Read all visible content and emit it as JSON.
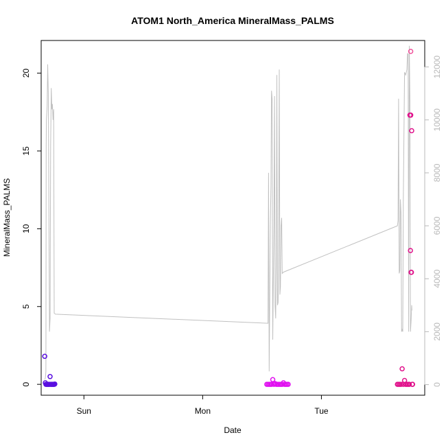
{
  "chart_data": {
    "type": "scatter",
    "title": "ATOM1 North_America MineralMass_PALMS",
    "xlabel": "Date",
    "ylabel": "MineralMass_PALMS",
    "x_axis": {
      "unit": "day",
      "lim": [
        -0.36,
        2.87
      ],
      "ticks": [
        {
          "label": "Sun",
          "value": 0
        },
        {
          "label": "Mon",
          "value": 1
        },
        {
          "label": "Tue",
          "value": 2
        }
      ]
    },
    "y_left": {
      "lim": [
        -0.7,
        22.1
      ],
      "ticks": [
        0,
        5,
        10,
        15,
        20
      ]
    },
    "y_right": {
      "lim": [
        -400,
        13000
      ],
      "ticks": [
        0,
        2000,
        4000,
        6000,
        8000,
        10000,
        12000
      ],
      "color": "#b8b8b8"
    },
    "grid": false,
    "line_series": {
      "name": "",
      "color": "#c0c0c0",
      "points": [
        [
          -0.33,
          200
        ],
        [
          -0.325,
          250
        ],
        [
          -0.32,
          500
        ],
        [
          -0.318,
          9000
        ],
        [
          -0.316,
          10000
        ],
        [
          -0.31,
          10500
        ],
        [
          -0.305,
          12100
        ],
        [
          -0.3,
          11000
        ],
        [
          -0.29,
          2000
        ],
        [
          -0.285,
          2500
        ],
        [
          -0.28,
          9000
        ],
        [
          -0.275,
          11200
        ],
        [
          -0.27,
          10400
        ],
        [
          -0.265,
          10600
        ],
        [
          -0.26,
          10000
        ],
        [
          -0.255,
          10400
        ],
        [
          -0.25,
          2700
        ],
        [
          -0.24,
          2660
        ],
        [
          1.55,
          2320
        ],
        [
          1.555,
          8000
        ],
        [
          1.56,
          500
        ],
        [
          1.57,
          6000
        ],
        [
          1.575,
          7500
        ],
        [
          1.58,
          11100
        ],
        [
          1.585,
          10800
        ],
        [
          1.59,
          1700
        ],
        [
          1.6,
          6000
        ],
        [
          1.605,
          10900
        ],
        [
          1.61,
          3000
        ],
        [
          1.615,
          2500
        ],
        [
          1.62,
          5000
        ],
        [
          1.625,
          11700
        ],
        [
          1.63,
          3000
        ],
        [
          1.635,
          3100
        ],
        [
          1.64,
          5500
        ],
        [
          1.645,
          11900
        ],
        [
          1.65,
          3400
        ],
        [
          1.655,
          3700
        ],
        [
          1.66,
          6000
        ],
        [
          1.665,
          6300
        ],
        [
          1.67,
          4200
        ],
        [
          1.68,
          4250
        ],
        [
          2.64,
          6000
        ],
        [
          2.645,
          6200
        ],
        [
          2.65,
          10800
        ],
        [
          2.655,
          4200
        ],
        [
          2.66,
          4300
        ],
        [
          2.665,
          7000
        ],
        [
          2.67,
          6500
        ],
        [
          2.675,
          2000
        ],
        [
          2.68,
          2100
        ],
        [
          2.685,
          2000
        ],
        [
          2.69,
          7000
        ],
        [
          2.7,
          11800
        ],
        [
          2.71,
          11700
        ],
        [
          2.72,
          11900
        ],
        [
          2.725,
          12500
        ],
        [
          2.73,
          12500
        ],
        [
          2.735,
          2000
        ],
        [
          2.74,
          12800
        ],
        [
          2.745,
          10700
        ],
        [
          2.75,
          2000
        ],
        [
          2.755,
          2400
        ],
        [
          2.76,
          3000
        ],
        [
          2.762,
          2800
        ]
      ]
    },
    "point_series": [
      {
        "name": "",
        "color": "#5a10e0",
        "points": [
          [
            -0.33,
            1.8
          ],
          [
            -0.325,
            0.1
          ],
          [
            -0.32,
            0
          ],
          [
            -0.315,
            0
          ],
          [
            -0.31,
            0
          ],
          [
            -0.305,
            0
          ],
          [
            -0.3,
            0
          ],
          [
            -0.295,
            0
          ],
          [
            -0.29,
            0
          ],
          [
            -0.285,
            0.5
          ],
          [
            -0.28,
            0
          ],
          [
            -0.275,
            0
          ],
          [
            -0.27,
            0
          ],
          [
            -0.265,
            0
          ],
          [
            -0.26,
            0
          ],
          [
            -0.255,
            0
          ],
          [
            -0.25,
            0
          ],
          [
            -0.245,
            0.02
          ]
        ]
      },
      {
        "name": "",
        "color": "#e010f0",
        "points": [
          [
            1.54,
            0
          ],
          [
            1.55,
            0
          ],
          [
            1.56,
            0
          ],
          [
            1.57,
            0
          ],
          [
            1.58,
            0
          ],
          [
            1.59,
            0.3
          ],
          [
            1.6,
            0
          ],
          [
            1.61,
            0.05
          ],
          [
            1.62,
            0
          ],
          [
            1.63,
            0
          ],
          [
            1.64,
            0
          ],
          [
            1.65,
            0
          ],
          [
            1.66,
            0
          ],
          [
            1.67,
            0
          ],
          [
            1.68,
            0.1
          ],
          [
            1.69,
            0
          ],
          [
            1.7,
            0
          ],
          [
            1.71,
            0
          ],
          [
            1.72,
            0
          ]
        ]
      },
      {
        "name": "",
        "color": "#e0108a",
        "points": [
          [
            2.64,
            0
          ],
          [
            2.65,
            0
          ],
          [
            2.66,
            0
          ],
          [
            2.67,
            0
          ],
          [
            2.68,
            1.0
          ],
          [
            2.69,
            0
          ],
          [
            2.7,
            0.25
          ],
          [
            2.71,
            0
          ],
          [
            2.72,
            0
          ],
          [
            2.73,
            0
          ],
          [
            2.74,
            0
          ],
          [
            2.745,
            17.3
          ],
          [
            2.75,
            8.6
          ],
          [
            2.752,
            17.3
          ],
          [
            2.755,
            7.2
          ],
          [
            2.758,
            7.2
          ],
          [
            2.76,
            16.3
          ],
          [
            2.765,
            0
          ],
          [
            2.768,
            0
          ]
        ]
      },
      {
        "name": "",
        "color": "#f0509a",
        "points": [
          [
            2.752,
            21.4
          ]
        ]
      }
    ]
  }
}
